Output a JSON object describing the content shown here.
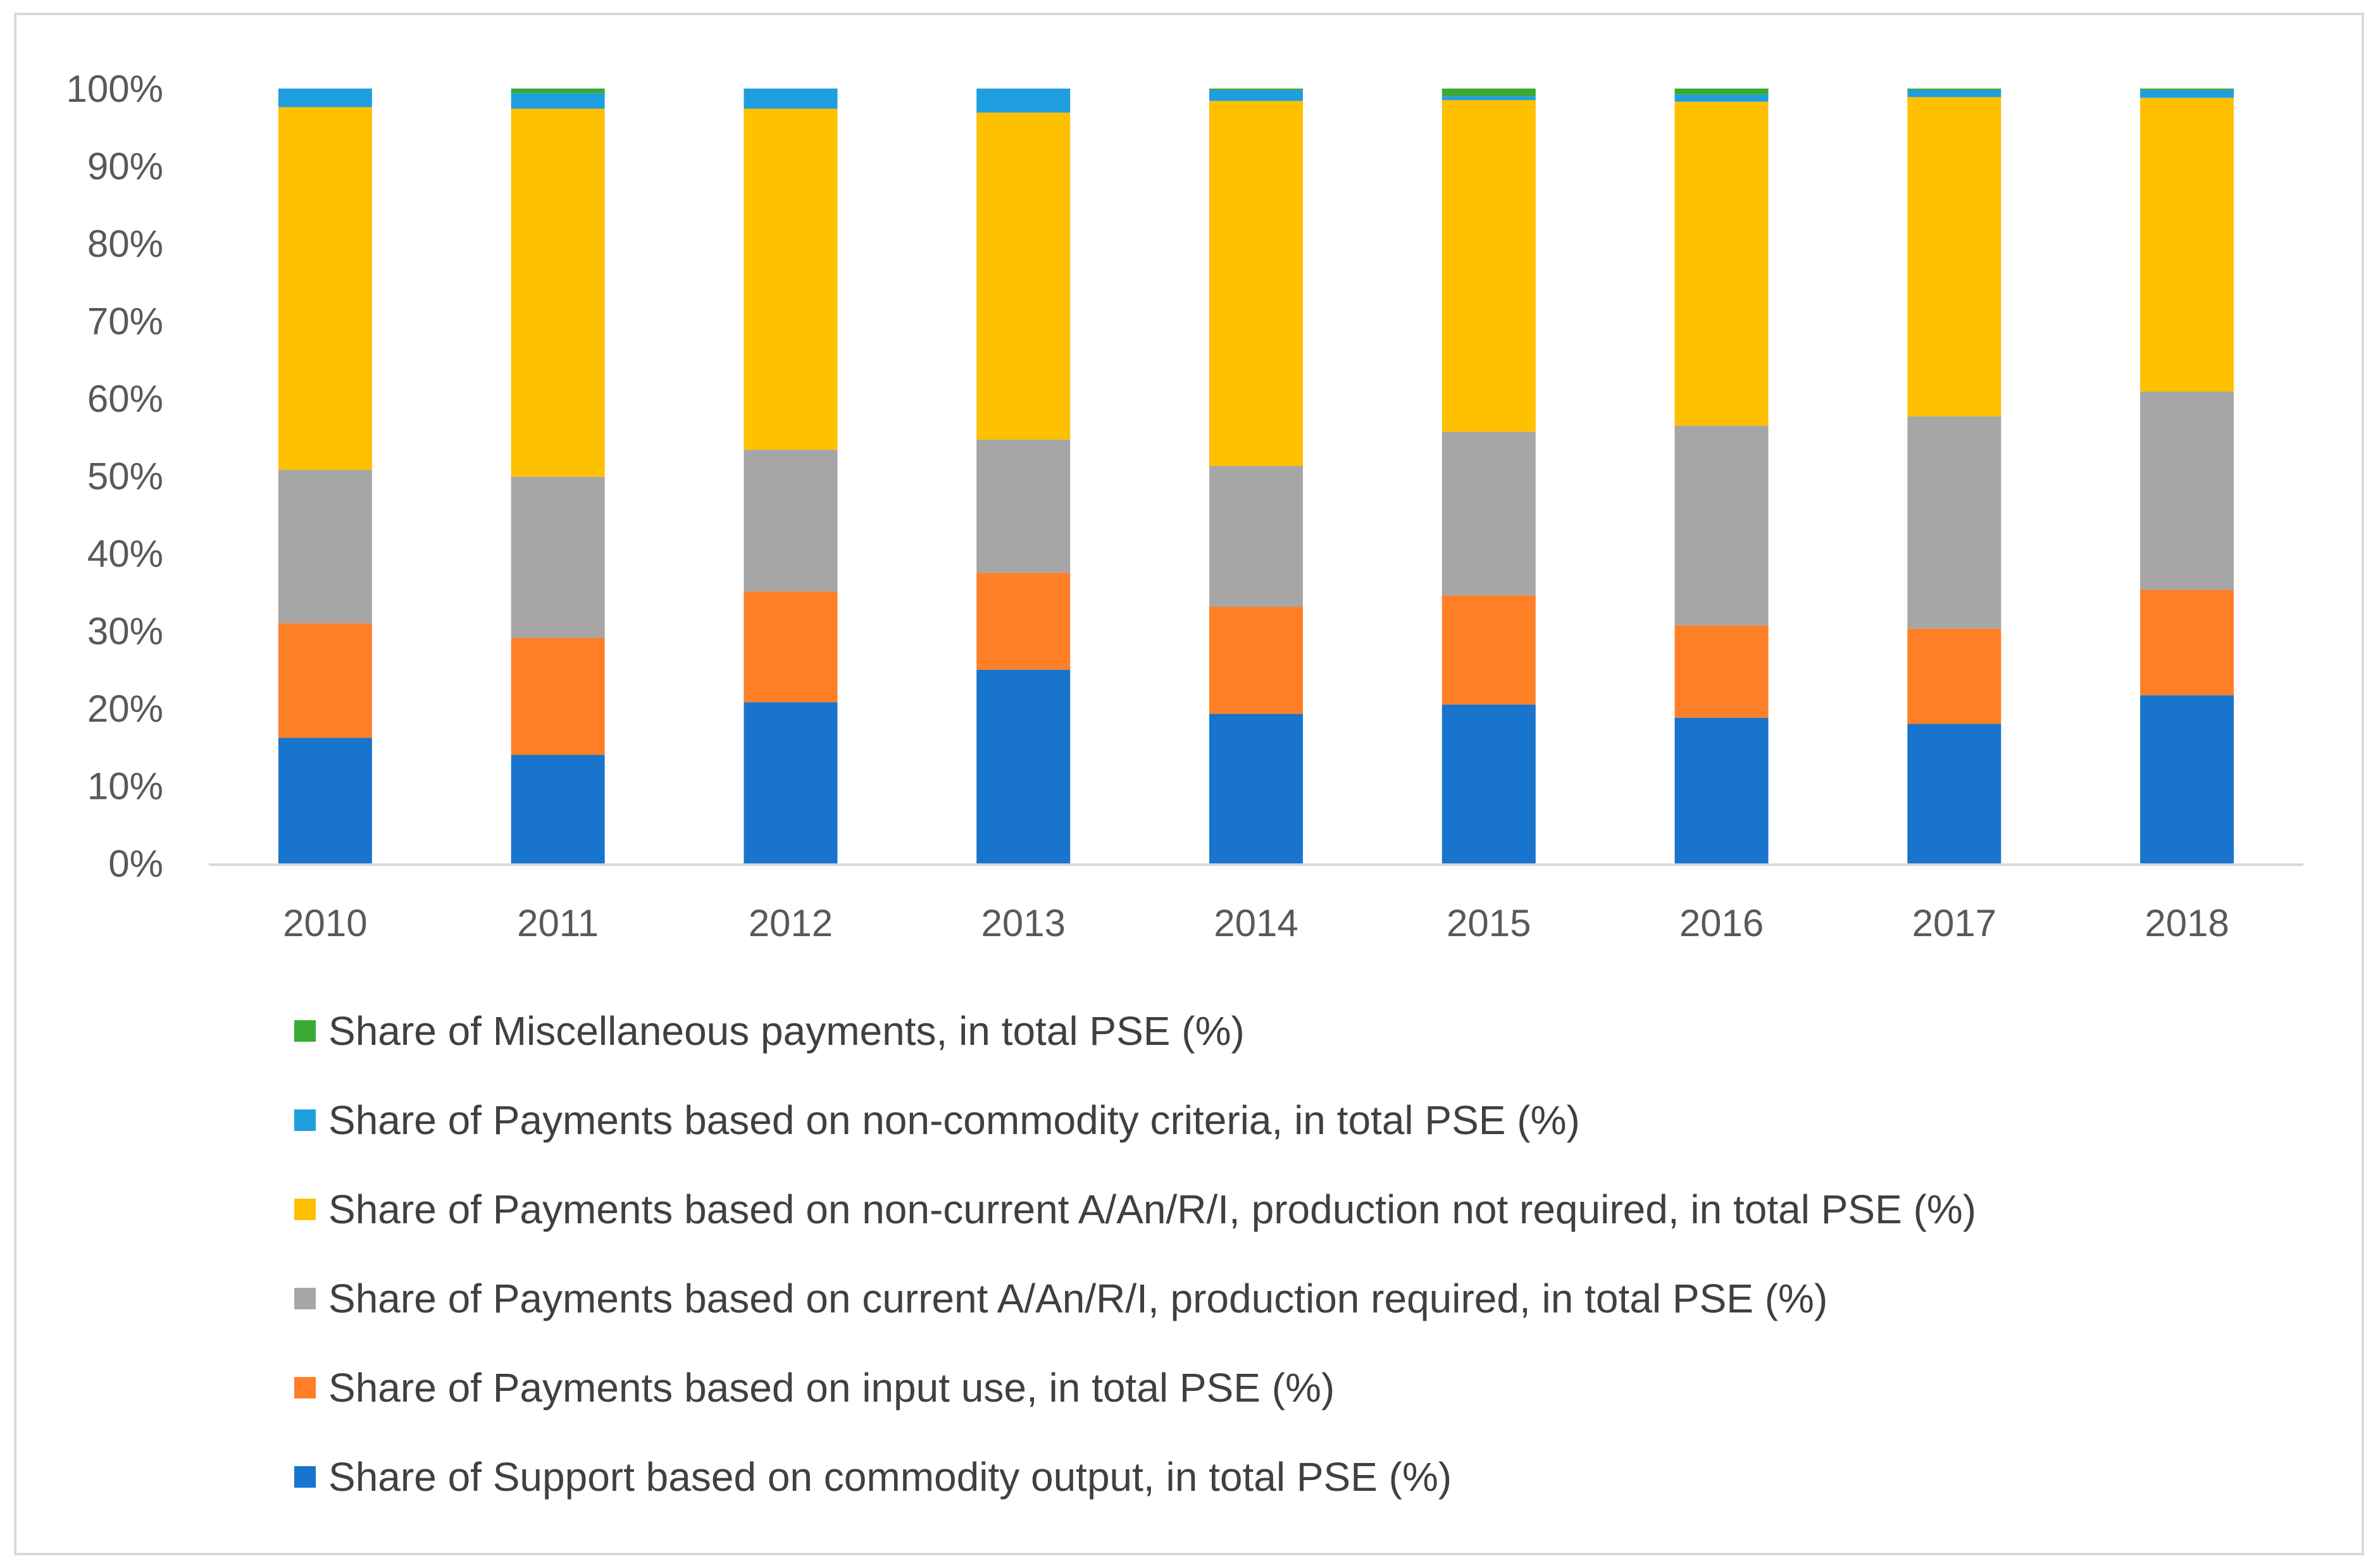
{
  "chart_data": {
    "type": "bar",
    "stacked": true,
    "title": "",
    "xlabel": "",
    "ylabel": "",
    "ylim": [
      0,
      100
    ],
    "yticks": [
      "0%",
      "10%",
      "20%",
      "30%",
      "40%",
      "50%",
      "60%",
      "70%",
      "80%",
      "90%",
      "100%"
    ],
    "categories": [
      "2010",
      "2011",
      "2012",
      "2013",
      "2014",
      "2015",
      "2016",
      "2017",
      "2018"
    ],
    "series": [
      {
        "name": "Share of Support based on commodity output, in total PSE (%)",
        "color": "#1874CD",
        "values": [
          16.2,
          14.0,
          20.8,
          25.0,
          19.3,
          20.5,
          18.8,
          18.0,
          21.7
        ]
      },
      {
        "name": "Share of Payments based on input use, in total PSE (%)",
        "color": "#FF7F27",
        "values": [
          14.8,
          15.1,
          14.3,
          12.5,
          13.8,
          14.1,
          11.9,
          12.3,
          13.6
        ]
      },
      {
        "name": "Share of Payments based on current A/An/R/I, production required, in total PSE (%)",
        "color": "#A6A6A6",
        "values": [
          19.8,
          20.8,
          18.3,
          17.2,
          18.2,
          21.1,
          25.8,
          27.4,
          25.6
        ]
      },
      {
        "name": "Share of Payments based on non-current A/An/R/I, production not required, in total PSE (%)",
        "color": "#FFC000",
        "values": [
          46.8,
          47.5,
          44.0,
          42.2,
          47.1,
          42.8,
          41.8,
          41.2,
          37.9
        ]
      },
      {
        "name": "Share of Payments based on non-commodity criteria, in total PSE (%)",
        "color": "#1F9FDF",
        "values": [
          2.4,
          2.0,
          2.6,
          3.1,
          1.4,
          0.5,
          0.9,
          0.9,
          1.0
        ]
      },
      {
        "name": "Share of Miscellaneous payments, in total PSE (%)",
        "color": "#3AAA35",
        "values": [
          0.0,
          0.6,
          0.0,
          0.0,
          0.2,
          1.0,
          0.8,
          0.2,
          0.2
        ]
      }
    ],
    "legend_order": [
      5,
      4,
      3,
      2,
      1,
      0
    ],
    "legend": "bottom",
    "grid": false
  }
}
